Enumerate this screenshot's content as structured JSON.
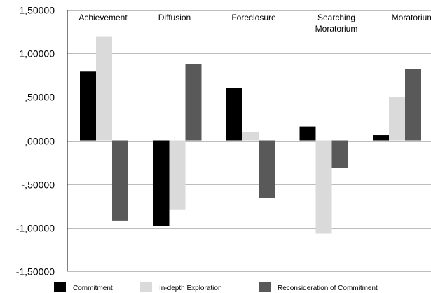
{
  "chart_data": {
    "type": "bar",
    "categories": [
      "Achievement",
      "Diffusion",
      "Foreclosure",
      "Searching Moratorium",
      "Moratorium"
    ],
    "category_labels": [
      [
        "Achievement"
      ],
      [
        "Diffusion"
      ],
      [
        "Foreclosure"
      ],
      [
        "Searching",
        "Moratorium"
      ],
      [
        "Moratorium"
      ]
    ],
    "series": [
      {
        "name": "Commitment",
        "color": "#000000",
        "values": [
          0.79,
          -0.98,
          0.6,
          0.16,
          0.06
        ]
      },
      {
        "name": "In-depth Exploration",
        "color": "#dadada",
        "values": [
          1.19,
          -0.79,
          0.1,
          -1.07,
          0.5
        ]
      },
      {
        "name": "Reconsideration of Commitment",
        "color": "#595959",
        "values": [
          -0.92,
          0.88,
          -0.66,
          -0.31,
          0.82
        ]
      }
    ],
    "y_tick_labels": [
      "1,50000",
      "1,00000",
      ",50000",
      ",00000",
      "-,50000",
      "-1,00000",
      "-1,50000"
    ],
    "y_tick_values": [
      1.5,
      1.0,
      0.5,
      0.0,
      -0.5,
      -1.0,
      -1.5
    ],
    "ylim": [
      -1.5,
      1.5
    ],
    "grid": true,
    "legend_position": "bottom"
  }
}
